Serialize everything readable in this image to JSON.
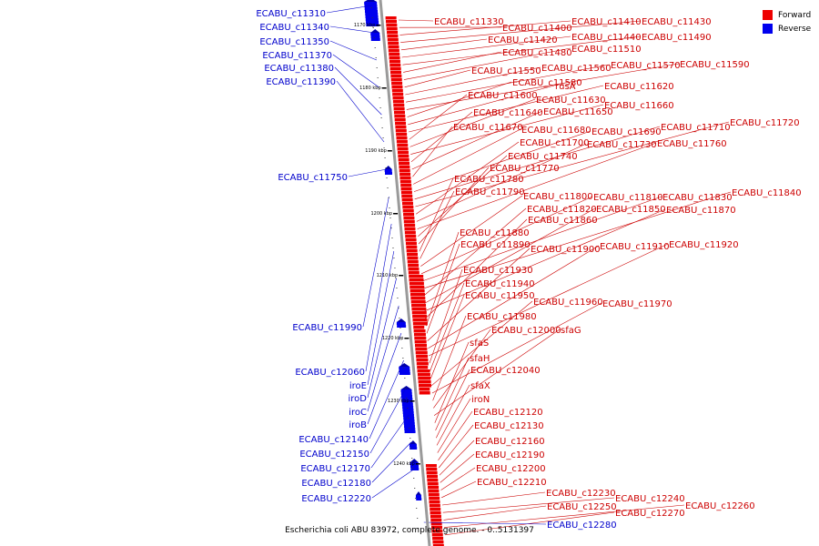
{
  "caption": "Escherichia coli ABU 83972, complete genome. - 0..5131397",
  "legend": {
    "forward_label": "Forward",
    "reverse_label": "Reverse",
    "forward_color": "#ee0000",
    "reverse_color": "#0000ee"
  },
  "ticks": [
    "1170 kbp",
    "1180 kbp",
    "1190 kbp",
    "1200 kbp",
    "1210 kbp",
    "1220 kbp",
    "1230 kbp",
    "1240 kbp"
  ],
  "forward_genes": [
    "ECABU_c11330",
    "ECABU_c11400",
    "ECABU_c11410",
    "ECABU_c11430",
    "ECABU_c11420",
    "ECABU_c11440",
    "ECABU_c11490",
    "ECABU_c11480",
    "ECABU_c11510",
    "ECABU_c11550",
    "ECABU_c11560",
    "ECABU_c11570",
    "ECABU_c11590",
    "ECABU_c11580",
    "rusA",
    "ECABU_c11620",
    "ECABU_c11600",
    "ECABU_c11630",
    "ECABU_c11660",
    "ECABU_c11640",
    "ECABU_c11650",
    "ECABU_c11670",
    "ECABU_c11680",
    "ECABU_c11690",
    "ECABU_c11710",
    "ECABU_c11720",
    "ECABU_c11700",
    "ECABU_c11730",
    "ECABU_c11760",
    "ECABU_c11740",
    "ECABU_c11770",
    "ECABU_c11780",
    "ECABU_c11790",
    "ECABU_c11800",
    "ECABU_c11810",
    "ECABU_c11830",
    "ECABU_c11840",
    "ECABU_c11820",
    "ECABU_c11850",
    "ECABU_c11870",
    "ECABU_c11860",
    "ECABU_c11880",
    "ECABU_c11890",
    "ECABU_c11900",
    "ECABU_c11910",
    "ECABU_c11920",
    "ECABU_c11930",
    "ECABU_c11940",
    "ECABU_c11950",
    "ECABU_c11960",
    "ECABU_c11970",
    "ECABU_c11980",
    "ECABU_c12000",
    "sfaG",
    "sfaS",
    "sfaH",
    "ECABU_c12040",
    "sfaX",
    "iroN",
    "ECABU_c12120",
    "ECABU_c12130",
    "ECABU_c12160",
    "ECABU_c12190",
    "ECABU_c12200",
    "ECABU_c12210",
    "ECABU_c12230",
    "ECABU_c12240",
    "ECABU_c12250",
    "ECABU_c12260",
    "ECABU_c12270"
  ],
  "reverse_genes": [
    "ECABU_c11310",
    "ECABU_c11340",
    "ECABU_c11350",
    "ECABU_c11370",
    "ECABU_c11380",
    "ECABU_c11390",
    "ECABU_c11750",
    "ECABU_c11990",
    "ECABU_c12060",
    "iroE",
    "iroD",
    "iroC",
    "iroB",
    "ECABU_c12140",
    "ECABU_c12150",
    "ECABU_c12170",
    "ECABU_c12180",
    "ECABU_c12220",
    "ECABU_c12280"
  ]
}
